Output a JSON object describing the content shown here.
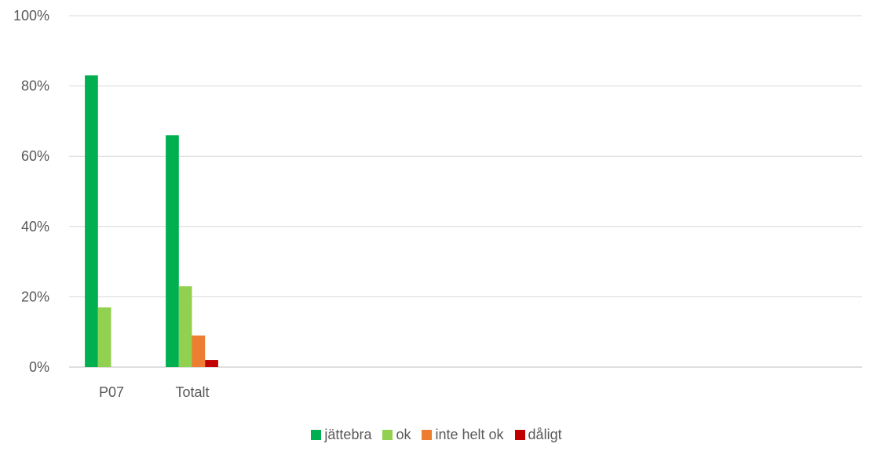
{
  "chart_data": {
    "type": "bar",
    "categories": [
      "P07",
      "Totalt"
    ],
    "series": [
      {
        "name": "jättebra",
        "color": "#00b050",
        "values": [
          83,
          66
        ]
      },
      {
        "name": "ok",
        "color": "#92d050",
        "values": [
          17,
          23
        ]
      },
      {
        "name": "inte helt ok",
        "color": "#ed7d31",
        "values": [
          0,
          9
        ]
      },
      {
        "name": "dåligt",
        "color": "#c00000",
        "values": [
          0,
          2
        ]
      }
    ],
    "ylim": [
      0,
      100
    ],
    "yticks": [
      "0%",
      "20%",
      "40%",
      "60%",
      "80%",
      "100%"
    ],
    "grid": true,
    "legend_position": "bottom"
  }
}
